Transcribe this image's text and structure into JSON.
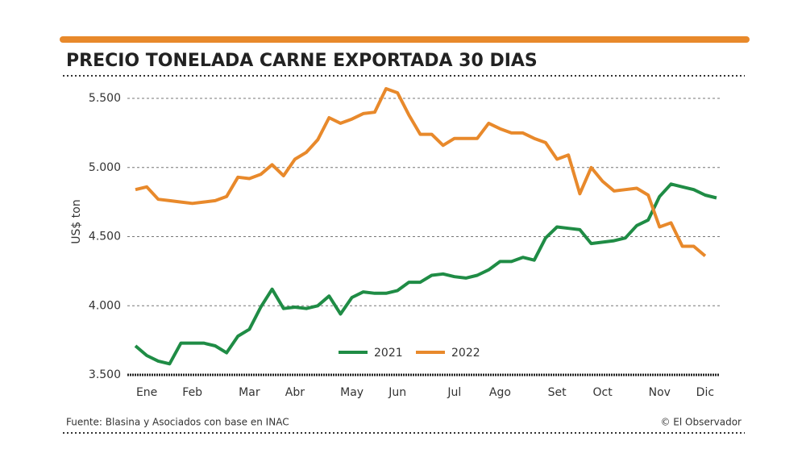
{
  "title": "PRECIO TONELADA CARNE EXPORTADA 30 DIAS",
  "chart_data": {
    "type": "line",
    "categories": [
      null,
      "Ene",
      null,
      null,
      null,
      "Feb",
      null,
      null,
      null,
      null,
      "Mar",
      null,
      null,
      null,
      "Abr",
      null,
      null,
      null,
      null,
      "May",
      null,
      null,
      null,
      "Jun",
      null,
      null,
      null,
      null,
      "Jul",
      null,
      null,
      null,
      "Ago",
      null,
      null,
      null,
      null,
      "Set",
      null,
      null,
      null,
      "Oct",
      null,
      null,
      null,
      null,
      "Nov",
      null,
      null,
      null,
      "Dic",
      null
    ],
    "series": [
      {
        "name": "2021",
        "color": "#1f8c45",
        "values": [
          3710,
          3640,
          3600,
          3580,
          3730,
          3730,
          3730,
          3710,
          3660,
          3780,
          3830,
          3990,
          4120,
          3980,
          3990,
          3980,
          4000,
          4070,
          3940,
          4060,
          4100,
          4090,
          4090,
          4110,
          4170,
          4170,
          4220,
          4230,
          4210,
          4200,
          4220,
          4260,
          4320,
          4320,
          4350,
          4330,
          4490,
          4570,
          4560,
          4550,
          4450,
          4460,
          4470,
          4490,
          4580,
          4620,
          4790,
          4880,
          4860,
          4840,
          4800,
          4780
        ]
      },
      {
        "name": "2022",
        "color": "#e8892b",
        "values": [
          4840,
          4860,
          4770,
          4760,
          4750,
          4740,
          4750,
          4760,
          4790,
          4930,
          4920,
          4950,
          5020,
          4940,
          5060,
          5110,
          5200,
          5360,
          5320,
          5350,
          5390,
          5400,
          5570,
          5540,
          5380,
          5240,
          5240,
          5160,
          5210,
          5210,
          5210,
          5320,
          5280,
          5250,
          5250,
          5210,
          5180,
          5060,
          5090,
          4810,
          5000,
          4900,
          4830,
          4840,
          4850,
          4800,
          4570,
          4600,
          4430,
          4430,
          4360,
          null
        ]
      }
    ],
    "ylabel": "US$ ton",
    "ylim": [
      3500,
      5500
    ],
    "yticks": [
      {
        "value": 3500,
        "label": "3.500"
      },
      {
        "value": 4000,
        "label": "4.000"
      },
      {
        "value": 4500,
        "label": "4.500"
      },
      {
        "value": 5000,
        "label": "5.000"
      },
      {
        "value": 5500,
        "label": "5.500"
      }
    ],
    "grid": true
  },
  "source": "Fuente: Blasina y Asociados con base en INAC",
  "credit": "© El Observador"
}
